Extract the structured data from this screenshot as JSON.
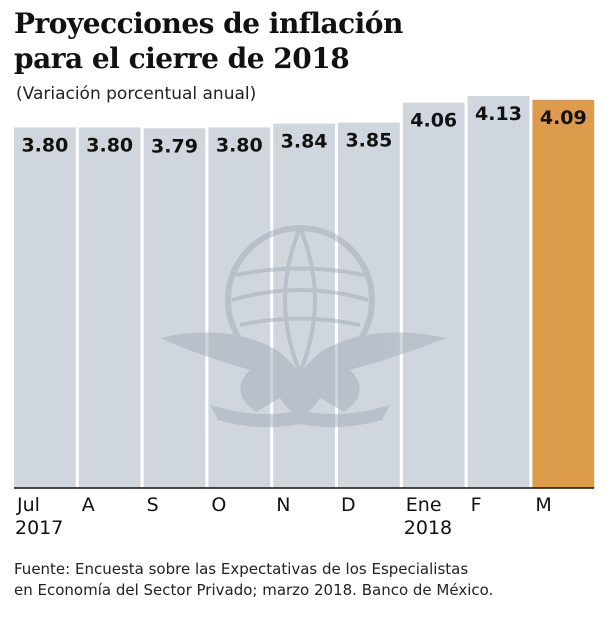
{
  "chart_data": {
    "type": "bar",
    "title_lines": [
      "Proyecciones de inflación",
      "para el cierre de 2018"
    ],
    "subtitle": "(Variación porcentual anual)",
    "categories": [
      "Jul",
      "A",
      "S",
      "O",
      "N",
      "D",
      "Ene",
      "F",
      "M"
    ],
    "category_sublabels": [
      "2017",
      "",
      "",
      "",
      "",
      "",
      "2018",
      "",
      ""
    ],
    "values": [
      3.8,
      3.8,
      3.79,
      3.8,
      3.84,
      3.85,
      4.06,
      4.13,
      4.09
    ],
    "value_labels": [
      "3.80",
      "3.80",
      "3.79",
      "3.80",
      "3.84",
      "3.85",
      "4.06",
      "4.13",
      "4.09"
    ],
    "highlight_index": 8,
    "xlabel": "",
    "ylabel": "",
    "grid": false
  },
  "colors": {
    "bar": "#cfd6de",
    "highlight": "#dd9b4c",
    "baseline": "#111111",
    "watermark": "#a3adb7"
  },
  "source_lines": [
    "Fuente: Encuesta sobre las Expectativas de los Especialistas",
    "en Economía del Sector Privado; marzo 2018. Banco de México."
  ],
  "watermark_icon": "eagle-emblem-icon"
}
